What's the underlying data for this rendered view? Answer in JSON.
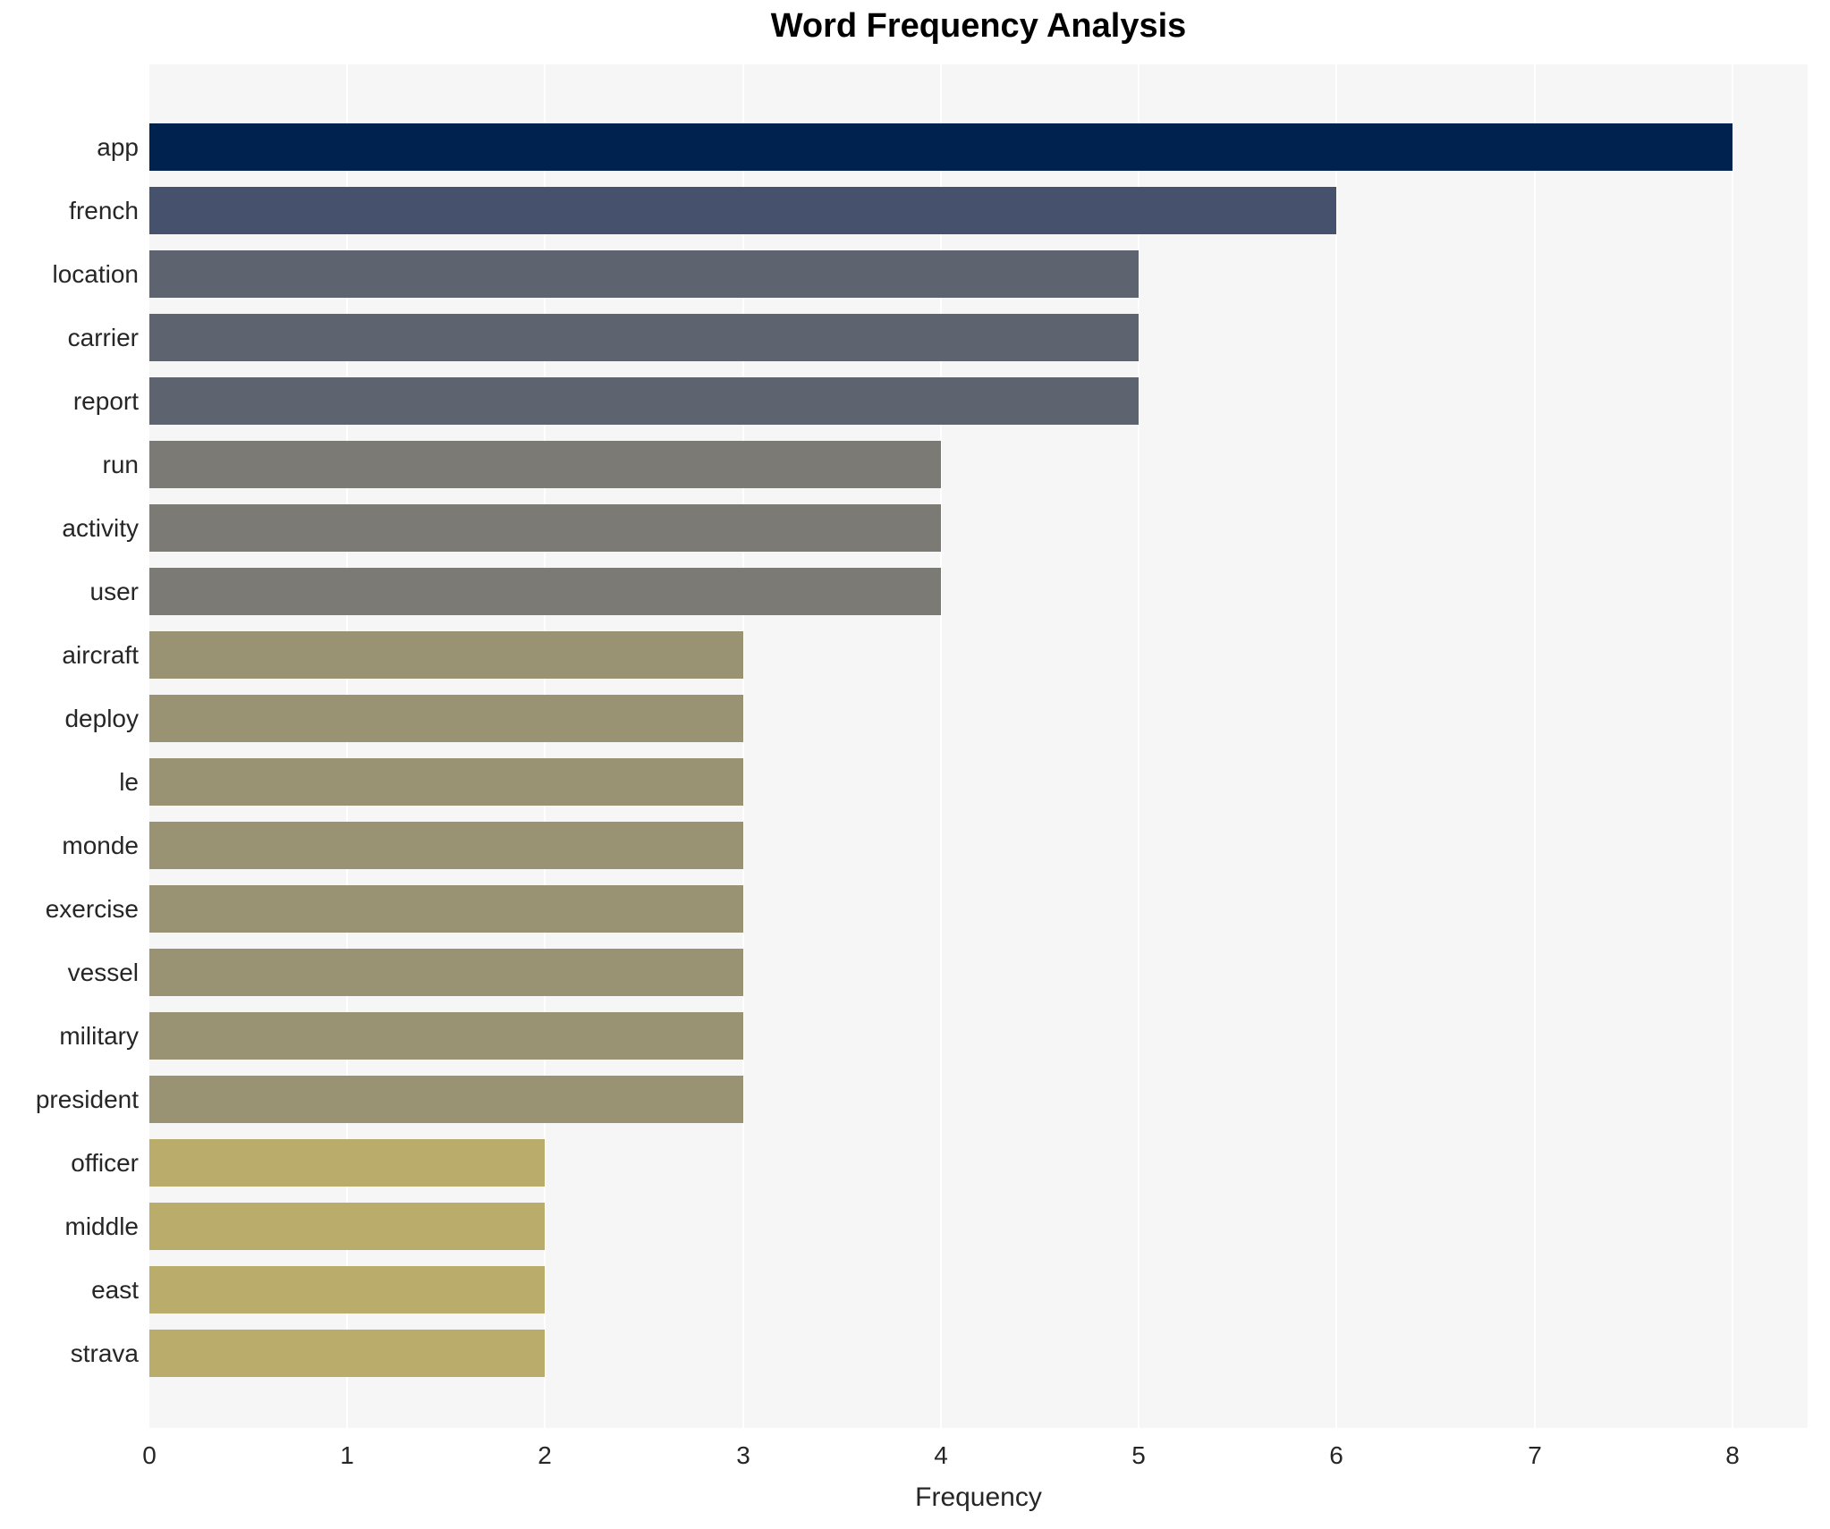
{
  "chart_data": {
    "type": "bar",
    "orientation": "horizontal",
    "title": "Word Frequency Analysis",
    "xlabel": "Frequency",
    "ylabel": "",
    "categories": [
      "app",
      "french",
      "location",
      "carrier",
      "report",
      "run",
      "activity",
      "user",
      "aircraft",
      "deploy",
      "le",
      "monde",
      "exercise",
      "vessel",
      "military",
      "president",
      "officer",
      "middle",
      "east",
      "strava"
    ],
    "values": [
      8,
      6,
      5,
      5,
      5,
      4,
      4,
      4,
      3,
      3,
      3,
      3,
      3,
      3,
      3,
      3,
      2,
      2,
      2,
      2
    ],
    "xlim": [
      0,
      8.38
    ],
    "xticks": [
      0,
      1,
      2,
      3,
      4,
      5,
      6,
      7,
      8
    ],
    "grid": true,
    "legend": false,
    "colors_by_value": {
      "8": "#00224e",
      "6": "#46516d",
      "5": "#5e6370",
      "4": "#7b7a74",
      "3": "#9a9373",
      "2": "#baac6b"
    },
    "plot_background": "#f6f6f7",
    "gridline_color": "#ffffff",
    "text_color": "#262626"
  }
}
